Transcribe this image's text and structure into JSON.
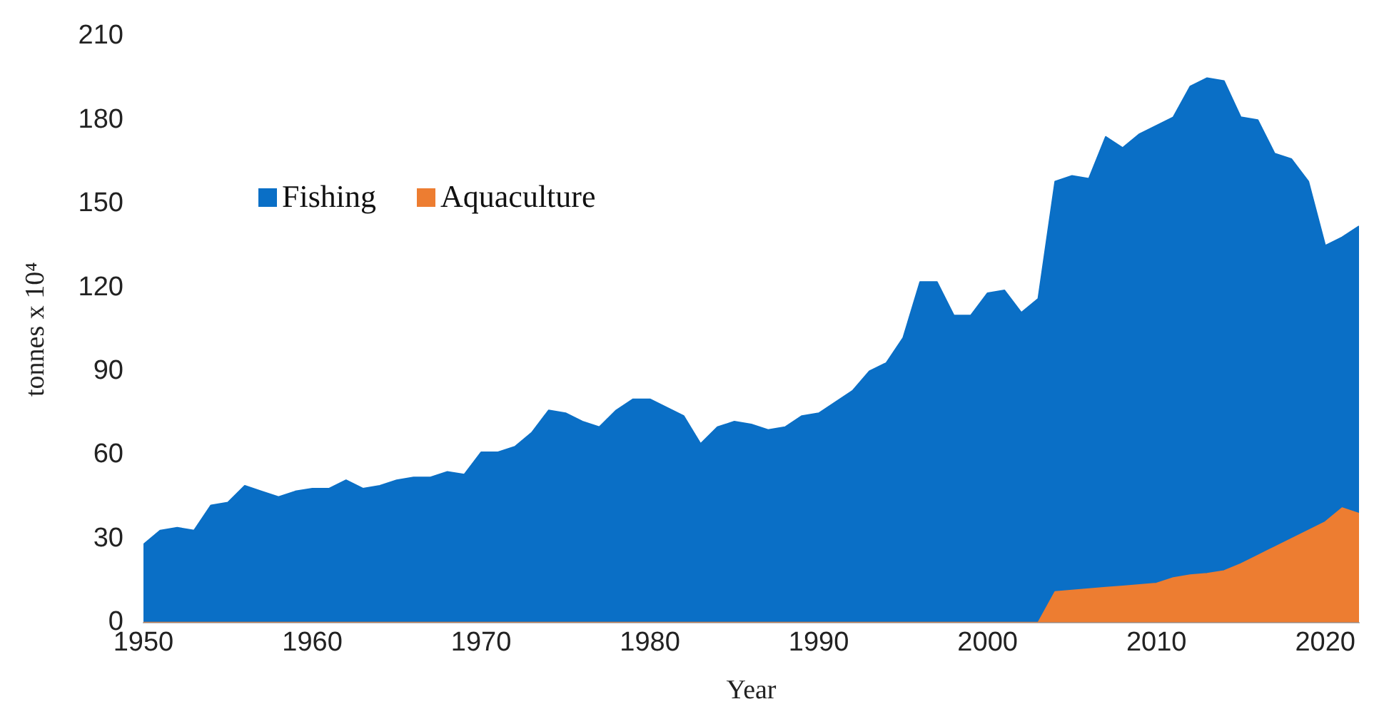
{
  "chart_data": {
    "type": "area",
    "xlabel": "Year",
    "ylabel": "tonnes x 10⁴",
    "x": [
      1950,
      1951,
      1952,
      1953,
      1954,
      1955,
      1956,
      1957,
      1958,
      1959,
      1960,
      1961,
      1962,
      1963,
      1964,
      1965,
      1966,
      1967,
      1968,
      1969,
      1970,
      1971,
      1972,
      1973,
      1974,
      1975,
      1976,
      1977,
      1978,
      1979,
      1980,
      1981,
      1982,
      1983,
      1984,
      1985,
      1986,
      1987,
      1988,
      1989,
      1990,
      1991,
      1992,
      1993,
      1994,
      1995,
      1996,
      1997,
      1998,
      1999,
      2000,
      2001,
      2002,
      2003,
      2004,
      2005,
      2006,
      2007,
      2008,
      2009,
      2010,
      2011,
      2012,
      2013,
      2014,
      2015,
      2016,
      2017,
      2018,
      2019,
      2020,
      2021,
      2022
    ],
    "series": [
      {
        "name": "Fishing",
        "color": "#0a6fc6",
        "values": [
          28,
          33,
          34,
          33,
          42,
          43,
          49,
          47,
          45,
          47,
          48,
          48,
          51,
          48,
          49,
          51,
          52,
          52,
          54,
          53,
          61,
          61,
          63,
          68,
          76,
          75,
          72,
          70,
          76,
          80,
          80,
          77,
          74,
          64,
          70,
          72,
          71,
          69,
          70,
          74,
          75,
          79,
          83,
          90,
          93,
          102,
          122,
          122,
          110,
          110,
          118,
          119,
          111,
          116,
          158,
          160,
          159,
          174,
          170,
          175,
          178,
          181,
          192,
          195,
          194,
          181,
          180,
          168,
          166,
          158,
          135,
          138,
          142
        ]
      },
      {
        "name": "Aquaculture",
        "color": "#ed7d31",
        "values": [
          0,
          0,
          0,
          0,
          0,
          0,
          0,
          0,
          0,
          0,
          0,
          0,
          0,
          0,
          0,
          0,
          0,
          0,
          0,
          0,
          0,
          0,
          0,
          0,
          0,
          0,
          0,
          0,
          0,
          0,
          0,
          0,
          0,
          0,
          0,
          0,
          0,
          0,
          0,
          0,
          0,
          0,
          0,
          0,
          0,
          0,
          0,
          0,
          0,
          0,
          0,
          0,
          0,
          0,
          11,
          11.5,
          12,
          12.5,
          13,
          13.5,
          14,
          16,
          17,
          17.5,
          18.5,
          21,
          24,
          27,
          30,
          33,
          36,
          41,
          39
        ]
      }
    ],
    "xlim": [
      1950,
      2022
    ],
    "xticks": [
      1950,
      1960,
      1970,
      1980,
      1990,
      2000,
      2010,
      2020
    ],
    "ylim": [
      0,
      210
    ],
    "yticks": [
      0,
      30,
      60,
      90,
      120,
      150,
      180,
      210
    ],
    "grid": false,
    "legend": "top left"
  }
}
